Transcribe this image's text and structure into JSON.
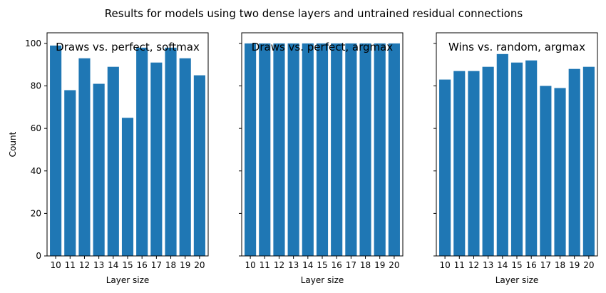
{
  "chart_data": {
    "suptitle": "Results for models using two dense layers and untrained residual connections",
    "sharey": true,
    "panels": [
      {
        "type": "bar",
        "title": "Draws vs. perfect, softmax",
        "xlabel": "Layer size",
        "ylabel": "Count",
        "categories": [
          "10",
          "11",
          "12",
          "13",
          "14",
          "15",
          "16",
          "17",
          "18",
          "19",
          "20"
        ],
        "values": [
          99,
          78,
          93,
          81,
          89,
          65,
          98,
          91,
          98,
          93,
          85
        ],
        "ylim": [
          0,
          105
        ],
        "yticks": [
          0,
          20,
          40,
          60,
          80,
          100
        ],
        "color": "#1f77b4"
      },
      {
        "type": "bar",
        "title": "Draws vs. perfect, argmax",
        "xlabel": "Layer size",
        "ylabel": "",
        "categories": [
          "10",
          "11",
          "12",
          "13",
          "14",
          "15",
          "16",
          "17",
          "18",
          "19",
          "20"
        ],
        "values": [
          100,
          100,
          100,
          100,
          100,
          100,
          100,
          100,
          100,
          100,
          100
        ],
        "ylim": [
          0,
          105
        ],
        "yticks": [
          0,
          20,
          40,
          60,
          80,
          100
        ],
        "color": "#1f77b4"
      },
      {
        "type": "bar",
        "title": "Wins vs. random, argmax",
        "xlabel": "Layer size",
        "ylabel": "",
        "categories": [
          "10",
          "11",
          "12",
          "13",
          "14",
          "15",
          "16",
          "17",
          "18",
          "19",
          "20"
        ],
        "values": [
          83,
          87,
          87,
          89,
          95,
          91,
          92,
          80,
          79,
          88,
          89
        ],
        "ylim": [
          0,
          105
        ],
        "yticks": [
          0,
          20,
          40,
          60,
          80,
          100
        ],
        "color": "#1f77b4"
      }
    ]
  }
}
